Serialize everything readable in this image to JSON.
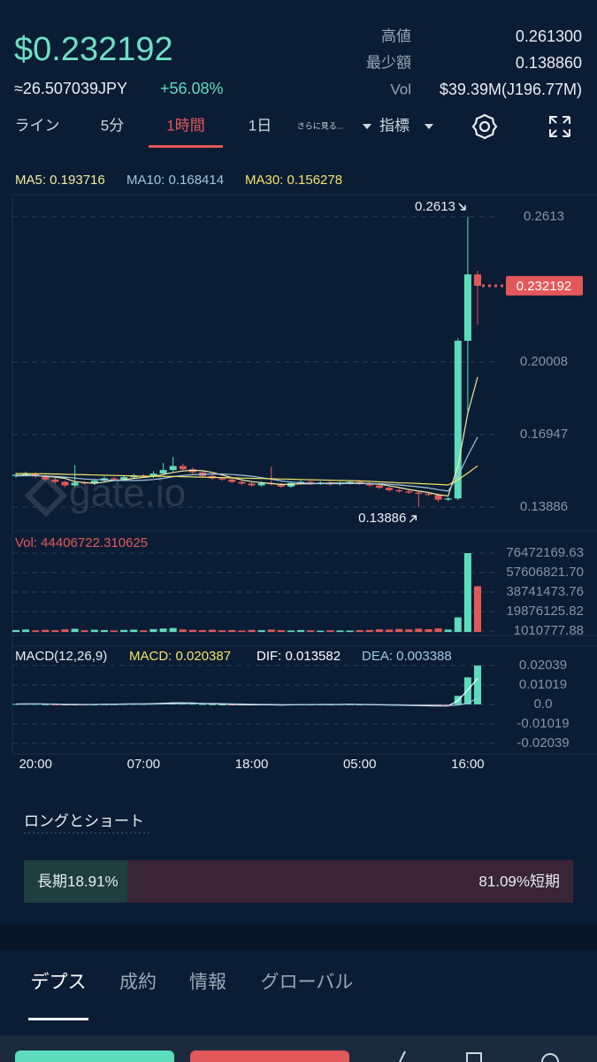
{
  "header": {
    "price": "$0.232192",
    "jpy": "≈26.507039JPY",
    "change": "+56.08%",
    "stats": [
      {
        "label": "高値",
        "value": "0.261300"
      },
      {
        "label": "最少額",
        "value": "0.138860"
      },
      {
        "label": "Vol",
        "value": "$39.39M(J196.77M)"
      }
    ]
  },
  "tabs": [
    "ライン",
    "5分",
    "1時間",
    "1日",
    "さらに見る...",
    "指標"
  ],
  "active_tab": 2,
  "chart_data": {
    "type": "candlestick",
    "watermark": "gate.io",
    "grid": true,
    "categories": [
      null,
      null,
      "20:00",
      null,
      null,
      null,
      null,
      null,
      null,
      null,
      null,
      null,
      null,
      "07:00",
      null,
      null,
      null,
      null,
      null,
      null,
      null,
      null,
      null,
      null,
      "18:00",
      null,
      null,
      null,
      null,
      null,
      null,
      null,
      null,
      null,
      null,
      "05:00",
      null,
      null,
      null,
      null,
      null,
      null,
      null,
      null,
      null,
      null,
      "16:00",
      null
    ],
    "up_color": "#5ddcbc",
    "down_color": "#e2585a",
    "candles": {
      "open": [
        0.152,
        0.1525,
        0.153,
        0.1518,
        0.1505,
        0.1495,
        0.148,
        0.1492,
        0.1488,
        0.15,
        0.151,
        0.1505,
        0.1515,
        0.1522,
        0.1518,
        0.153,
        0.1545,
        0.1562,
        0.1548,
        0.1535,
        0.152,
        0.151,
        0.1505,
        0.1495,
        0.1488,
        0.148,
        0.149,
        0.1485,
        0.1475,
        0.149,
        0.1495,
        0.1488,
        0.1492,
        0.1485,
        0.149,
        0.1495,
        0.1488,
        0.148,
        0.147,
        0.146,
        0.1455,
        0.145,
        0.1445,
        0.144,
        0.142,
        0.1425,
        0.209,
        0.237
      ],
      "high": [
        0.1533,
        0.1538,
        0.1536,
        0.1524,
        0.1512,
        0.15,
        0.1565,
        0.1498,
        0.1507,
        0.1517,
        0.1516,
        0.1521,
        0.1529,
        0.1528,
        0.154,
        0.1575,
        0.16,
        0.1572,
        0.1555,
        0.1541,
        0.1527,
        0.1516,
        0.1512,
        0.1501,
        0.1494,
        0.1497,
        0.156,
        0.1491,
        0.1497,
        0.1502,
        0.15,
        0.1498,
        0.1497,
        0.1496,
        0.1501,
        0.15,
        0.1494,
        0.1486,
        0.1476,
        0.1466,
        0.1461,
        0.1456,
        0.1451,
        0.1446,
        0.1431,
        0.21,
        0.2613,
        0.2385
      ],
      "low": [
        0.1513,
        0.1518,
        0.1511,
        0.1498,
        0.1488,
        0.1473,
        0.1474,
        0.1481,
        0.1482,
        0.1494,
        0.1499,
        0.1499,
        0.1509,
        0.1512,
        0.1512,
        0.1524,
        0.1539,
        0.1542,
        0.1529,
        0.1514,
        0.1504,
        0.1499,
        0.1489,
        0.1482,
        0.1474,
        0.1474,
        0.1479,
        0.1469,
        0.1469,
        0.1484,
        0.1482,
        0.1482,
        0.1479,
        0.1479,
        0.1484,
        0.1482,
        0.1474,
        0.1464,
        0.1454,
        0.1449,
        0.1444,
        0.13886,
        0.1434,
        0.141,
        0.1414,
        0.1418,
        0.1792,
        0.2158
      ],
      "close": [
        0.1525,
        0.153,
        0.1518,
        0.1505,
        0.1495,
        0.148,
        0.1492,
        0.1488,
        0.15,
        0.151,
        0.1505,
        0.1515,
        0.1522,
        0.1518,
        0.153,
        0.1545,
        0.1562,
        0.1548,
        0.1535,
        0.152,
        0.151,
        0.1505,
        0.1495,
        0.1488,
        0.148,
        0.149,
        0.1485,
        0.1475,
        0.149,
        0.1495,
        0.1488,
        0.1492,
        0.1485,
        0.149,
        0.1495,
        0.1488,
        0.148,
        0.147,
        0.146,
        0.1455,
        0.145,
        0.1445,
        0.144,
        0.142,
        0.1425,
        0.209,
        0.237,
        0.232192
      ]
    },
    "ma": [
      {
        "name": "MA5: 0.193716",
        "color": "#f1eca2",
        "values": [
          0.1522,
          0.1524,
          0.1522,
          0.1518,
          0.1515,
          0.151,
          0.1496,
          0.1492,
          0.1489,
          0.1494,
          0.1501,
          0.1504,
          0.151,
          0.1514,
          0.1518,
          0.1526,
          0.1535,
          0.1541,
          0.1544,
          0.1542,
          0.1535,
          0.1524,
          0.1513,
          0.1504,
          0.1496,
          0.1492,
          0.1488,
          0.1484,
          0.1484,
          0.1487,
          0.1487,
          0.1488,
          0.149,
          0.149,
          0.149,
          0.149,
          0.1488,
          0.1485,
          0.1479,
          0.1471,
          0.1463,
          0.1456,
          0.145,
          0.1441,
          0.1436,
          0.1562,
          0.1784,
          0.193716
        ]
      },
      {
        "name": "MA10: 0.168414",
        "color": "#9fc6e4",
        "values": [
          0.152,
          0.1521,
          0.1521,
          0.152,
          0.1518,
          0.1515,
          0.1511,
          0.1507,
          0.1505,
          0.1504,
          0.1502,
          0.1501,
          0.1501,
          0.1502,
          0.1505,
          0.151,
          0.1517,
          0.1522,
          0.1525,
          0.1527,
          0.1528,
          0.1528,
          0.1526,
          0.1523,
          0.1519,
          0.1513,
          0.1506,
          0.1499,
          0.1494,
          0.1491,
          0.1488,
          0.1488,
          0.1487,
          0.1488,
          0.1488,
          0.1488,
          0.1488,
          0.1487,
          0.1485,
          0.1482,
          0.1478,
          0.1474,
          0.1469,
          0.1462,
          0.1456,
          0.1519,
          0.1605,
          0.168414
        ]
      },
      {
        "name": "MA30: 0.156278",
        "color": "#f3e26a",
        "values": [
          0.153,
          0.153,
          0.1529,
          0.1529,
          0.1528,
          0.1527,
          0.1526,
          0.1525,
          0.1524,
          0.1523,
          0.1522,
          0.1521,
          0.152,
          0.1519,
          0.1519,
          0.1518,
          0.1518,
          0.1517,
          0.1516,
          0.1515,
          0.1514,
          0.1513,
          0.1512,
          0.1511,
          0.151,
          0.1509,
          0.1508,
          0.1507,
          0.1506,
          0.1505,
          0.1504,
          0.1503,
          0.1502,
          0.1501,
          0.15,
          0.1499,
          0.1497,
          0.1495,
          0.1493,
          0.1491,
          0.149,
          0.1488,
          0.1486,
          0.1484,
          0.1482,
          0.1504,
          0.1532,
          0.156278
        ]
      }
    ],
    "ylim": [
      0.12878,
      0.2706
    ],
    "yticks": [
      0.2613,
      0.20008,
      0.16947,
      0.13886
    ],
    "volume": {
      "label": "Vol: 44406722.310625",
      "ylim": [
        -3300000,
        82500000
      ],
      "yticks": [
        76472169.63,
        {
          "value": 57606821.7,
          "label": "57606821.70"
        },
        38741473.76,
        19876125.82,
        1010777.88
      ],
      "values": [
        1900000,
        2400000,
        1600000,
        2100000,
        1800000,
        2600000,
        3100000,
        1700000,
        2200000,
        1900000,
        1500000,
        2000000,
        2300000,
        1600000,
        2800000,
        3400000,
        3900000,
        2500000,
        2100000,
        1800000,
        2200000,
        1600000,
        1900000,
        1400000,
        2000000,
        1700000,
        2400000,
        1800000,
        1500000,
        1900000,
        1600000,
        1300000,
        1700000,
        1500000,
        1400000,
        1800000,
        2000000,
        2600000,
        2300000,
        2900000,
        2500000,
        3200000,
        2700000,
        3500000,
        2400000,
        14200000,
        76472169.63,
        44406722.310625
      ]
    },
    "macd": {
      "label": "MACD(12,26,9)",
      "ylim": [
        -0.026,
        0.0306
      ],
      "yticks": [
        0.02039,
        0.01019,
        {
          "value": 0,
          "label": "0.0"
        },
        -0.01019,
        -0.02039
      ],
      "series": [
        {
          "name": "MACD: 0.020387",
          "color": "#f3e26a",
          "values": [
            0.0003,
            0.0004,
            0.0003,
            0.0001,
            -0.0001,
            -0.0003,
            -0.0002,
            -0.0002,
            0,
            0.0001,
            0.0001,
            0.0002,
            0.0003,
            0.0003,
            0.0004,
            0.0006,
            0.0008,
            0.0006,
            0.0004,
            0.0002,
            0.0001,
            0,
            -0.0001,
            -0.0002,
            -0.0003,
            -0.0002,
            -0.0002,
            -0.0003,
            -0.0001,
            0,
            0,
            0.0001,
            0,
            0.0001,
            0.0001,
            0,
            -0.0001,
            -0.0002,
            -0.0003,
            -0.0003,
            -0.0004,
            -0.0004,
            -0.0004,
            -0.0005,
            -0.0003,
            0.0045,
            0.0142,
            0.020387
          ]
        },
        {
          "name": "DIF: 0.013582",
          "color": "#ffffff",
          "values": [
            0.0002,
            0.0003,
            0.0003,
            0.0002,
            0.0001,
            -0.0001,
            -0.0001,
            -0.0001,
            0,
            0.0001,
            0.0001,
            0.0002,
            0.0003,
            0.0003,
            0.0004,
            0.0006,
            0.0008,
            0.0008,
            0.0007,
            0.0005,
            0.0003,
            0.0002,
            0,
            -0.0001,
            -0.0002,
            -0.0002,
            -0.0002,
            -0.0003,
            -0.0002,
            -0.0001,
            -0.0001,
            0,
            0,
            0,
            0.0001,
            0,
            -0.0001,
            -0.0002,
            -0.0003,
            -0.0004,
            -0.0005,
            -0.0006,
            -0.0007,
            -0.0008,
            -0.0008,
            0.002,
            0.0076,
            0.013582
          ]
        },
        {
          "name": "DEA: 0.003388",
          "color": "#9fc6e4",
          "values": [
            0.0001,
            0.0001,
            0.0002,
            0.0002,
            0.0002,
            0.0001,
            0.0001,
            0,
            0,
            0,
            0,
            0.0001,
            0.0001,
            0.0001,
            0.0002,
            0.0003,
            0.0004,
            0.0005,
            0.0005,
            0.0005,
            0.0005,
            0.0004,
            0.0003,
            0.0002,
            0.0001,
            0,
            0,
            -0.0001,
            -0.0001,
            -0.0001,
            -0.0001,
            -0.0001,
            -0.0001,
            0,
            0,
            0,
            0,
            -0.0001,
            -0.0002,
            -0.0002,
            -0.0003,
            -0.0004,
            -0.0004,
            -0.0005,
            -0.0006,
            -0.0003,
            0.0006,
            0.003388
          ]
        }
      ]
    }
  },
  "long_short": {
    "title": "ロングとショート",
    "long": {
      "value": 18.91,
      "label": "長期18.91%"
    },
    "short": {
      "value": 81.09,
      "label": "81.09%短期"
    }
  },
  "bottom_tabs": [
    "デプス",
    "成約",
    "情報",
    "グローバル"
  ],
  "active_bottom_tab": 0
}
